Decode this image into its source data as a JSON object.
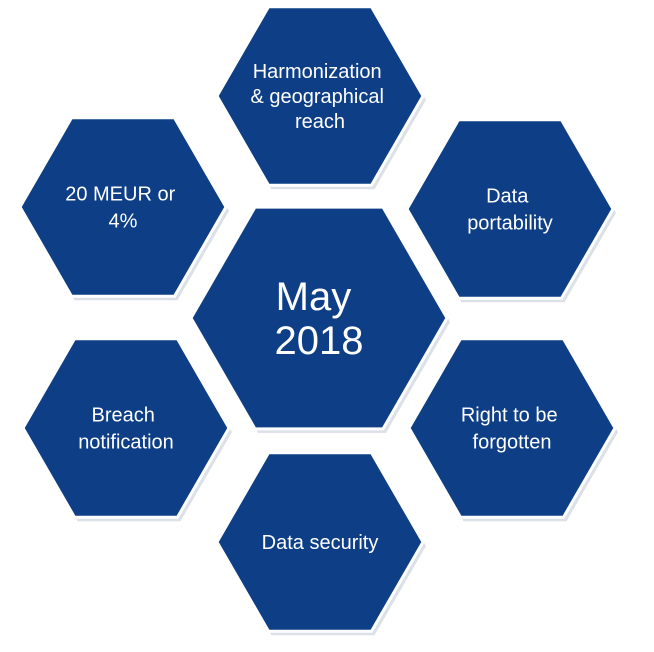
{
  "diagram": {
    "colors": {
      "hex_fill": "#0e3f86",
      "hex_stroke": "#ffffff",
      "text": "#ffffff",
      "background": "#ffffff"
    },
    "center": {
      "lines": [
        "May",
        "2018"
      ]
    },
    "hexagons": [
      {
        "id": "harmonization",
        "lines": [
          "Harmonization",
          "& geographical",
          "reach"
        ]
      },
      {
        "id": "data-portability",
        "lines": [
          "Data",
          "portability"
        ]
      },
      {
        "id": "right-to-be-forgotten",
        "lines": [
          "Right to be",
          "forgotten"
        ]
      },
      {
        "id": "data-security",
        "lines": [
          "Data security"
        ]
      },
      {
        "id": "breach-notification",
        "lines": [
          "Breach",
          "notification"
        ]
      },
      {
        "id": "fines",
        "lines": [
          "20 MEUR or",
          "4%"
        ]
      }
    ]
  }
}
